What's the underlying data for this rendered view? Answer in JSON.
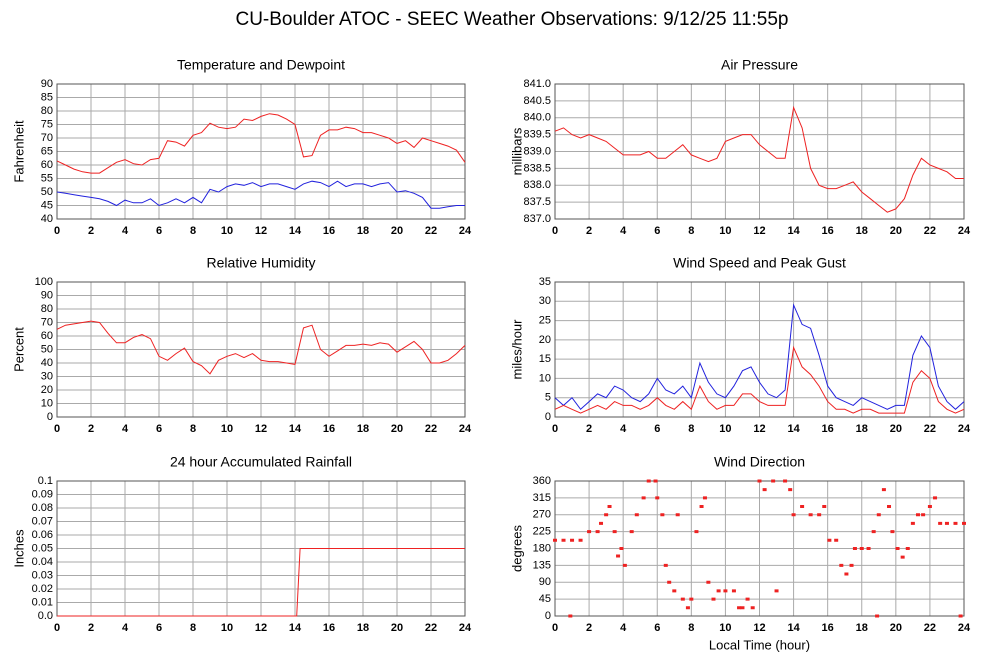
{
  "title": "CU-Boulder ATOC - SEEC Weather Observations: 9/12/25 11:55p",
  "chart_data": [
    {
      "type": "line",
      "title": "Temperature and Dewpoint",
      "ylabel": "Fahrenheit",
      "x": [
        0,
        0.5,
        1,
        1.5,
        2,
        2.5,
        3,
        3.5,
        4,
        4.5,
        5,
        5.5,
        6,
        6.5,
        7,
        7.5,
        8,
        8.5,
        9,
        9.5,
        10,
        10.5,
        11,
        11.5,
        12,
        12.5,
        13,
        13.5,
        14,
        14.5,
        15,
        15.5,
        16,
        16.5,
        17,
        17.5,
        18,
        18.5,
        19,
        19.5,
        20,
        20.5,
        21,
        21.5,
        22,
        22.5,
        23,
        23.5,
        24
      ],
      "series": [
        {
          "color": "#ee2222",
          "values": [
            61.5,
            60,
            58.5,
            57.5,
            57,
            57,
            59,
            61,
            62,
            60.5,
            60,
            62,
            62.5,
            69,
            68.5,
            67,
            71,
            72,
            75.5,
            74,
            73.5,
            74,
            77,
            76.5,
            78,
            79,
            78.5,
            77,
            75,
            63,
            63.5,
            71,
            73,
            73,
            74,
            73.5,
            72,
            72,
            71,
            70,
            68,
            69,
            66.5,
            70,
            69,
            68,
            67,
            65.5,
            61
          ]
        },
        {
          "color": "#2222dd",
          "values": [
            50,
            49.5,
            49,
            48.5,
            48,
            47.5,
            46.5,
            45,
            47,
            46,
            46,
            47.5,
            45,
            46,
            47.5,
            46,
            48,
            46,
            51,
            50,
            52,
            53,
            52.5,
            53.5,
            52,
            53,
            53,
            52,
            51,
            53,
            54,
            53.5,
            52,
            54,
            52,
            53,
            53,
            52,
            53,
            53.5,
            50,
            50.5,
            49.5,
            48,
            44,
            44,
            44.5,
            45,
            45
          ]
        }
      ],
      "xlim": [
        0,
        24
      ],
      "xticks": [
        0,
        2,
        4,
        6,
        8,
        10,
        12,
        14,
        16,
        18,
        20,
        22,
        24
      ],
      "ylim": [
        40,
        90
      ],
      "yticks": [
        40,
        45,
        50,
        55,
        60,
        65,
        70,
        75,
        80,
        85,
        90
      ]
    },
    {
      "type": "line",
      "title": "Air Pressure",
      "ylabel": "millibars",
      "x": [
        0,
        0.5,
        1,
        1.5,
        2,
        2.5,
        3,
        3.5,
        4,
        4.5,
        5,
        5.5,
        6,
        6.5,
        7,
        7.5,
        8,
        8.5,
        9,
        9.5,
        10,
        10.5,
        11,
        11.5,
        12,
        12.5,
        13,
        13.5,
        14,
        14.5,
        15,
        15.5,
        16,
        16.5,
        17,
        17.5,
        18,
        18.5,
        19,
        19.5,
        20,
        20.5,
        21,
        21.5,
        22,
        22.5,
        23,
        23.5,
        24
      ],
      "series": [
        {
          "color": "#ee2222",
          "values": [
            839.6,
            839.7,
            839.5,
            839.4,
            839.5,
            839.4,
            839.3,
            839.1,
            838.9,
            838.9,
            838.9,
            839.0,
            838.8,
            838.8,
            839.0,
            839.2,
            838.9,
            838.8,
            838.7,
            838.8,
            839.3,
            839.4,
            839.5,
            839.5,
            839.2,
            839.0,
            838.8,
            838.8,
            840.3,
            839.7,
            838.5,
            838.0,
            837.9,
            837.9,
            838.0,
            838.1,
            837.8,
            837.6,
            837.4,
            837.2,
            837.3,
            837.6,
            838.3,
            838.8,
            838.6,
            838.5,
            838.4,
            838.2,
            838.2
          ]
        }
      ],
      "xlim": [
        0,
        24
      ],
      "xticks": [
        0,
        2,
        4,
        6,
        8,
        10,
        12,
        14,
        16,
        18,
        20,
        22,
        24
      ],
      "ylim": [
        837,
        841
      ],
      "yticks": [
        {
          "value": 837,
          "label": "837.0"
        },
        837.5,
        {
          "value": 838,
          "label": "838.0"
        },
        838.5,
        {
          "value": 839,
          "label": "839.0"
        },
        839.5,
        {
          "value": 840,
          "label": "840.0"
        },
        840.5,
        {
          "value": 841,
          "label": "841.0"
        }
      ]
    },
    {
      "type": "line",
      "title": "Relative Humidity",
      "ylabel": "Percent",
      "x": [
        0,
        0.5,
        1,
        1.5,
        2,
        2.5,
        3,
        3.5,
        4,
        4.5,
        5,
        5.5,
        6,
        6.5,
        7,
        7.5,
        8,
        8.5,
        9,
        9.5,
        10,
        10.5,
        11,
        11.5,
        12,
        12.5,
        13,
        13.5,
        14,
        14.5,
        15,
        15.5,
        16,
        16.5,
        17,
        17.5,
        18,
        18.5,
        19,
        19.5,
        20,
        20.5,
        21,
        21.5,
        22,
        22.5,
        23,
        23.5,
        24
      ],
      "series": [
        {
          "color": "#ee2222",
          "values": [
            65,
            68,
            69,
            70,
            71,
            70,
            62,
            55,
            55,
            59,
            61,
            58,
            45,
            42,
            47,
            51,
            41,
            38,
            32,
            42,
            45,
            47,
            44,
            47,
            42,
            41,
            41,
            40,
            39,
            66,
            68,
            50,
            45,
            49,
            53,
            53,
            54,
            53,
            55,
            54,
            48,
            52,
            56,
            50,
            40,
            40,
            42,
            47,
            53
          ]
        }
      ],
      "xlim": [
        0,
        24
      ],
      "xticks": [
        0,
        2,
        4,
        6,
        8,
        10,
        12,
        14,
        16,
        18,
        20,
        22,
        24
      ],
      "ylim": [
        0,
        100
      ],
      "yticks": [
        0,
        10,
        20,
        30,
        40,
        50,
        60,
        70,
        80,
        90,
        100
      ]
    },
    {
      "type": "line",
      "title": "Wind Speed and Peak Gust",
      "ylabel": "miles/hour",
      "x": [
        0,
        0.5,
        1,
        1.5,
        2,
        2.5,
        3,
        3.5,
        4,
        4.5,
        5,
        5.5,
        6,
        6.5,
        7,
        7.5,
        8,
        8.5,
        9,
        9.5,
        10,
        10.5,
        11,
        11.5,
        12,
        12.5,
        13,
        13.5,
        14,
        14.5,
        15,
        15.5,
        16,
        16.5,
        17,
        17.5,
        18,
        18.5,
        19,
        19.5,
        20,
        20.5,
        21,
        21.5,
        22,
        22.5,
        23,
        23.5,
        24
      ],
      "series": [
        {
          "color": "#2222dd",
          "values": [
            5,
            3,
            5,
            2,
            4,
            6,
            5,
            8,
            7,
            5,
            4,
            6,
            10,
            7,
            6,
            8,
            5,
            14,
            9,
            6,
            5,
            8,
            12,
            13,
            9,
            6,
            5,
            7,
            29,
            24,
            23,
            16,
            8,
            5,
            4,
            3,
            5,
            4,
            3,
            2,
            3,
            3,
            16,
            21,
            18,
            8,
            4,
            2,
            4
          ]
        },
        {
          "color": "#ee2222",
          "values": [
            2,
            3,
            2,
            1,
            2,
            3,
            2,
            4,
            3,
            3,
            2,
            3,
            5,
            3,
            2,
            4,
            2,
            8,
            4,
            2,
            3,
            3,
            6,
            6,
            4,
            3,
            3,
            3,
            18,
            13,
            11,
            8,
            4,
            2,
            2,
            1,
            2,
            2,
            1,
            1,
            1,
            1,
            9,
            12,
            10,
            4,
            2,
            1,
            2
          ]
        }
      ],
      "xlim": [
        0,
        24
      ],
      "xticks": [
        0,
        2,
        4,
        6,
        8,
        10,
        12,
        14,
        16,
        18,
        20,
        22,
        24
      ],
      "ylim": [
        0,
        35
      ],
      "yticks": [
        0,
        5,
        10,
        15,
        20,
        25,
        30,
        35
      ]
    },
    {
      "type": "line",
      "title": "24 hour Accumulated Rainfall",
      "ylabel": "Inches",
      "x": [
        0,
        14.1,
        14.3,
        24
      ],
      "series": [
        {
          "color": "#ee2222",
          "values": [
            0,
            0,
            0.05,
            0.05
          ]
        }
      ],
      "xlim": [
        0,
        24
      ],
      "xticks": [
        0,
        2,
        4,
        6,
        8,
        10,
        12,
        14,
        16,
        18,
        20,
        22,
        24
      ],
      "ylim": [
        0,
        0.1
      ],
      "yticks": [
        {
          "value": 0,
          "label": "0.0"
        },
        0.01,
        0.02,
        0.03,
        0.04,
        0.05,
        0.06,
        0.07,
        0.08,
        0.09,
        0.1
      ]
    },
    {
      "type": "scatter",
      "title": "Wind Direction",
      "ylabel": "degrees",
      "xlabel": "Local Time (hour)",
      "x": [
        0,
        0.5,
        1,
        1.5,
        0.9,
        2,
        2.5,
        2.7,
        3,
        3.2,
        3.5,
        3.7,
        3.9,
        4.1,
        4.5,
        4.8,
        5.2,
        5.5,
        5.9,
        6,
        6.3,
        6.5,
        6.7,
        7,
        7.2,
        7.5,
        7.8,
        8,
        8.3,
        8.6,
        8.8,
        9,
        9.3,
        9.6,
        10,
        10.5,
        10.8,
        11,
        11.3,
        11.6,
        12,
        12.3,
        12.8,
        13,
        13.5,
        13.8,
        14,
        14.5,
        15,
        15.5,
        15.8,
        16.1,
        16.5,
        16.8,
        17.1,
        17.4,
        17.6,
        18,
        18.4,
        18.7,
        18.9,
        19,
        19.3,
        19.6,
        19.8,
        20.1,
        20.4,
        20.7,
        21,
        21.3,
        21.6,
        22,
        22.3,
        22.6,
        23,
        23.5,
        23.8,
        24
      ],
      "series": [
        {
          "color": "#ee2222",
          "values": [
            202,
            202,
            202,
            202,
            0,
            225,
            225,
            247,
            270,
            292,
            225,
            160,
            180,
            135,
            225,
            270,
            315,
            360,
            360,
            315,
            270,
            135,
            90,
            67,
            270,
            45,
            22,
            45,
            225,
            292,
            315,
            90,
            45,
            67,
            67,
            67,
            22,
            22,
            45,
            22,
            360,
            337,
            360,
            67,
            360,
            337,
            270,
            292,
            270,
            270,
            292,
            202,
            202,
            135,
            112,
            135,
            180,
            180,
            180,
            225,
            0,
            270,
            337,
            292,
            225,
            180,
            157,
            180,
            247,
            270,
            270,
            292,
            315,
            247,
            247,
            247,
            0,
            247
          ]
        }
      ],
      "xlim": [
        0,
        24
      ],
      "xticks": [
        0,
        2,
        4,
        6,
        8,
        10,
        12,
        14,
        16,
        18,
        20,
        22,
        24
      ],
      "ylim": [
        0,
        360
      ],
      "yticks": [
        0,
        45,
        90,
        135,
        180,
        225,
        270,
        315,
        360
      ]
    }
  ]
}
